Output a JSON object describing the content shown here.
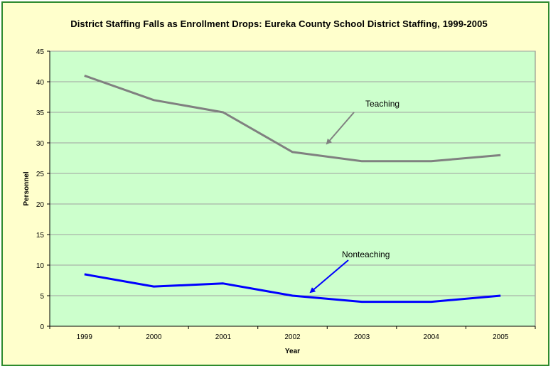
{
  "chart_data": {
    "type": "line",
    "title": "District Staffing Falls as Enrollment Drops: Eureka County School District Staffing, 1999-2005",
    "xlabel": "Year",
    "ylabel": "Personnel",
    "categories": [
      "1999",
      "2000",
      "2001",
      "2002",
      "2003",
      "2004",
      "2005"
    ],
    "ylim": [
      0,
      45
    ],
    "yticks": [
      "0",
      "5",
      "10",
      "15",
      "20",
      "25",
      "30",
      "35",
      "40",
      "45"
    ],
    "grid": true,
    "series": [
      {
        "name": "Teaching",
        "values": [
          41,
          37,
          35,
          28.5,
          27,
          27,
          28
        ],
        "color": "#808080"
      },
      {
        "name": "Nonteaching",
        "values": [
          8.5,
          6.5,
          7,
          5,
          4,
          4,
          5
        ],
        "color": "#0000ff"
      }
    ]
  },
  "colors": {
    "plot_background": "#ccffcc",
    "page_background": "#ffffcc",
    "border": "#2e8b2e",
    "gridline": "#a0a0a0"
  }
}
